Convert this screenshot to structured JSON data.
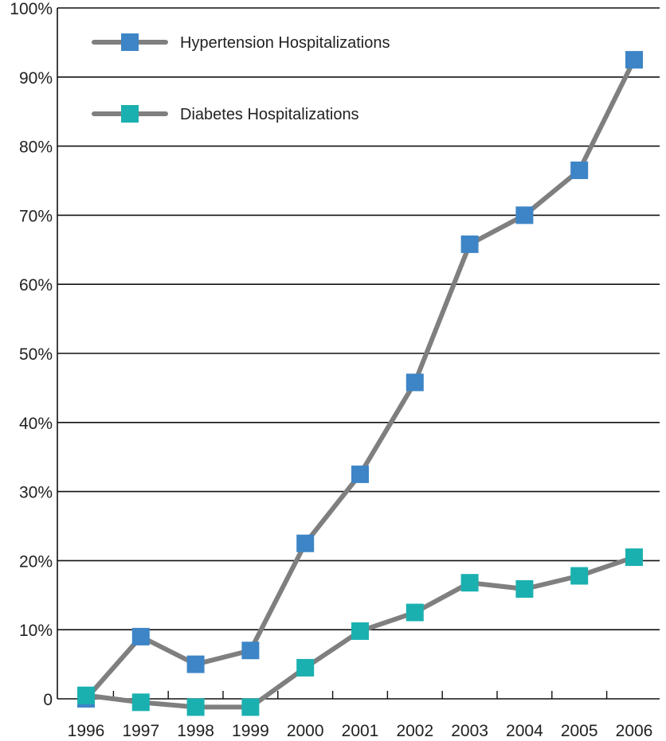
{
  "chart_data": {
    "type": "line",
    "title": "",
    "xlabel": "",
    "ylabel": "",
    "categories": [
      "1996",
      "1997",
      "1998",
      "1999",
      "2000",
      "2001",
      "2002",
      "2003",
      "2004",
      "2005",
      "2006"
    ],
    "ylim": [
      0,
      100
    ],
    "yticks": [
      {
        "value": 0,
        "label": "0"
      },
      {
        "value": 10,
        "label": "10%"
      },
      {
        "value": 20,
        "label": "20%"
      },
      {
        "value": 30,
        "label": "30%"
      },
      {
        "value": 40,
        "label": "40%"
      },
      {
        "value": 50,
        "label": "50%"
      },
      {
        "value": 60,
        "label": "60%"
      },
      {
        "value": 70,
        "label": "70%"
      },
      {
        "value": 80,
        "label": "80%"
      },
      {
        "value": 90,
        "label": "90%"
      },
      {
        "value": 100,
        "label": "100%"
      }
    ],
    "grid": true,
    "legend_position": "top-left",
    "line_color": "#7f7f7f",
    "series": [
      {
        "name": "Hypertension Hospitalizations",
        "color": "#3d85c6",
        "values": [
          0,
          9,
          5,
          7,
          22.5,
          32.5,
          45.8,
          65.8,
          70,
          76.5,
          92.5
        ]
      },
      {
        "name": "Diabetes Hospitalizations",
        "color": "#1ab0b0",
        "values": [
          0.5,
          -0.5,
          -1.2,
          -1.2,
          4.5,
          9.8,
          12.5,
          16.8,
          15.9,
          17.8,
          20.5
        ]
      }
    ]
  }
}
